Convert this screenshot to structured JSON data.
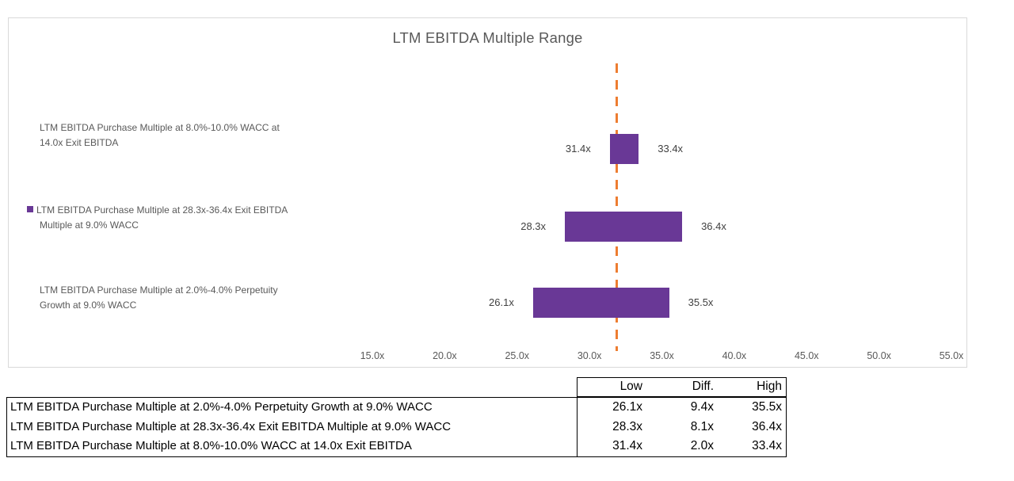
{
  "chart_data": {
    "type": "bar",
    "subtype": "horizontal-range",
    "title": "LTM EBITDA Multiple Range",
    "rows": [
      {
        "label_lines": [
          "LTM EBITDA Purchase Multiple at 8.0%-10.0% WACC at",
          "14.0x Exit EBITDA"
        ],
        "low": 31.4,
        "high": 33.4,
        "low_label": "31.4x",
        "high_label": "33.4x",
        "has_legend_key": false
      },
      {
        "label_lines": [
          "LTM EBITDA Purchase Multiple at 28.3x-36.4x Exit EBITDA",
          "Multiple at 9.0% WACC"
        ],
        "low": 28.3,
        "high": 36.4,
        "low_label": "28.3x",
        "high_label": "36.4x",
        "has_legend_key": true
      },
      {
        "label_lines": [
          "LTM EBITDA Purchase Multiple at 2.0%-4.0% Perpetuity",
          "Growth at 9.0% WACC"
        ],
        "low": 26.1,
        "high": 35.5,
        "low_label": "26.1x",
        "high_label": "35.5x",
        "has_legend_key": false
      }
    ],
    "x_axis": {
      "tick_labels": [
        "15.0x",
        "20.0x",
        "25.0x",
        "30.0x",
        "35.0x",
        "40.0x",
        "45.0x",
        "50.0x",
        "55.0x"
      ],
      "tick_values": [
        15,
        20,
        25,
        30,
        35,
        40,
        45,
        50,
        55
      ],
      "min": 15,
      "max": 55
    },
    "reference_line": {
      "value": 31.9,
      "style": "dashed",
      "color": "#ED7D31"
    },
    "colors": {
      "bar": "#693896",
      "title_text": "#595959",
      "axis_text": "#595959",
      "label_text": "#404040",
      "chart_border": "#D9D9D9"
    },
    "legend_position": "left-of-categories",
    "grid": false
  },
  "table": {
    "headers": [
      "Low",
      "Diff.",
      "High"
    ],
    "rows": [
      {
        "label": "LTM EBITDA Purchase Multiple at 2.0%-4.0% Perpetuity Growth at 9.0% WACC",
        "low": "26.1x",
        "diff": "9.4x",
        "high": "35.5x"
      },
      {
        "label": "LTM EBITDA Purchase Multiple at 28.3x-36.4x Exit EBITDA Multiple at 9.0% WACC",
        "low": "28.3x",
        "diff": "8.1x",
        "high": "36.4x"
      },
      {
        "label": "LTM EBITDA Purchase Multiple at 8.0%-10.0% WACC at 14.0x Exit EBITDA",
        "low": "31.4x",
        "diff": "2.0x",
        "high": "33.4x"
      }
    ]
  }
}
